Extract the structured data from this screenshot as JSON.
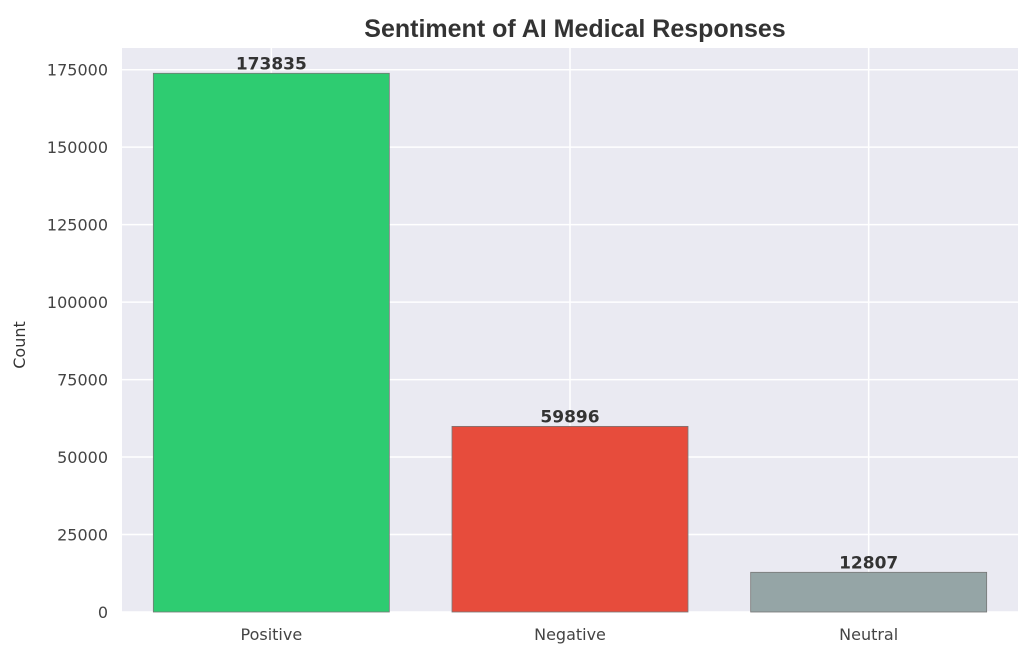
{
  "chart_data": {
    "type": "bar",
    "title": "Sentiment of AI Medical Responses",
    "xlabel": "",
    "ylabel": "Count",
    "categories": [
      "Positive",
      "Negative",
      "Neutral"
    ],
    "values": [
      173835,
      59896,
      12807
    ],
    "value_labels": [
      "173835",
      "59896",
      "12807"
    ],
    "ylim": [
      0,
      182000
    ],
    "yticks": [
      0,
      25000,
      50000,
      75000,
      100000,
      125000,
      150000,
      175000
    ],
    "ytick_labels": [
      "0",
      "25000",
      "50000",
      "75000",
      "100000",
      "125000",
      "150000",
      "175000"
    ],
    "grid": true,
    "legend": "none",
    "colors": {
      "bars": [
        "#2ecc71",
        "#e74c3c",
        "#95a5a6"
      ],
      "plot_background": "#eaeaf2",
      "grid": "#ffffff"
    }
  }
}
